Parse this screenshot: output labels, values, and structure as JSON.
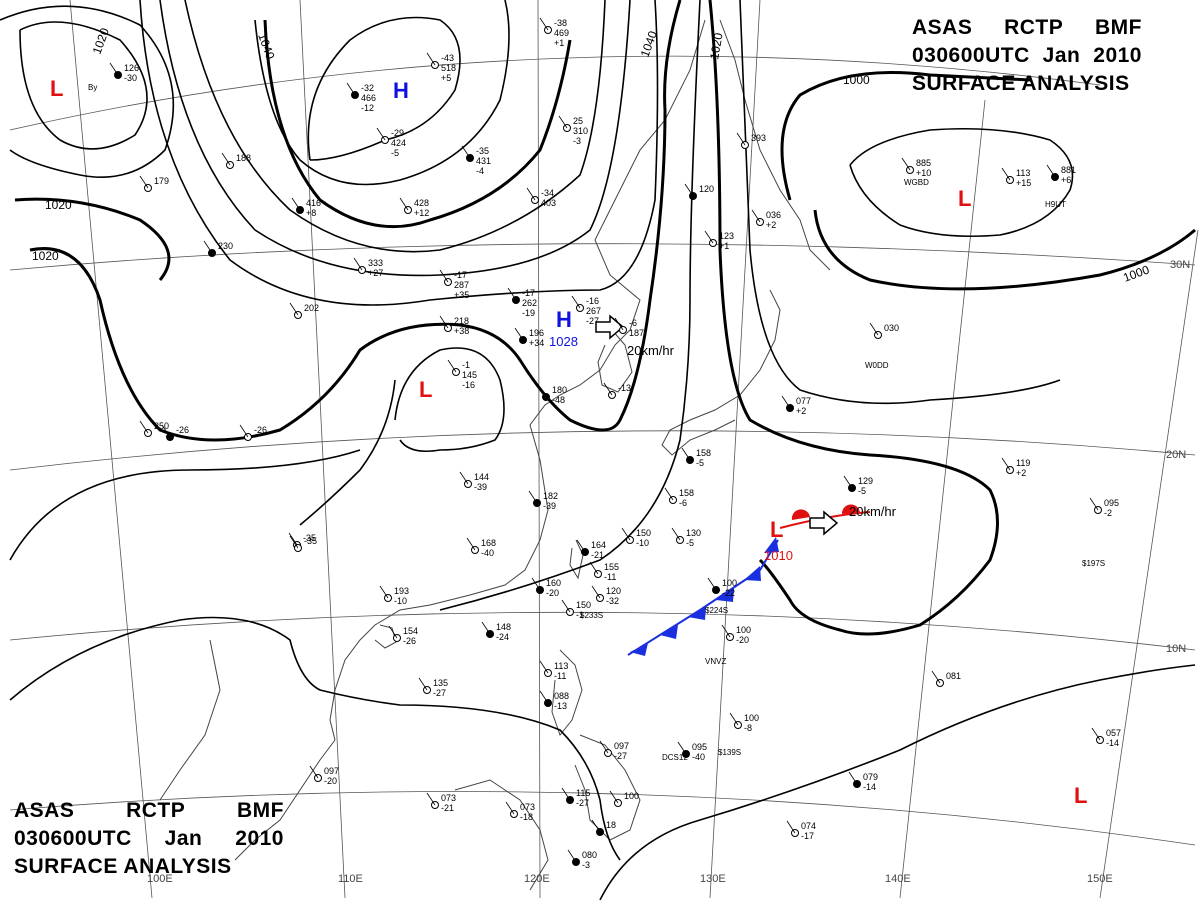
{
  "header": {
    "agency": "ASAS",
    "station": "RCTP",
    "office": "BMF",
    "time": "030600UTC",
    "month": "Jan",
    "year": "2010",
    "product": "SURFACE ANALYSIS"
  },
  "colors": {
    "low": "#e01010",
    "high": "#1010e0",
    "cold_front": "#1a2fe0",
    "warm_front": "#e01010"
  },
  "isobar_labels": [
    "1020",
    "1040",
    "1040",
    "1020",
    "1000",
    "1000",
    "1020",
    "1020"
  ],
  "pressure_centers": [
    {
      "type": "L",
      "value": ""
    },
    {
      "type": "H",
      "value": ""
    },
    {
      "type": "H",
      "value": "1028"
    },
    {
      "type": "L",
      "value": ""
    },
    {
      "type": "L",
      "value": ""
    },
    {
      "type": "L",
      "value": "1010"
    },
    {
      "type": "L",
      "value": ""
    }
  ],
  "motion_labels": [
    "20km/hr",
    "20km/hr"
  ],
  "lon_labels": [
    "100E",
    "110E",
    "120E",
    "130E",
    "140E",
    "150E"
  ],
  "lat_labels": [
    "30N",
    "20N",
    "10N"
  ],
  "stations": [
    [
      "126",
      "-30"
    ],
    [
      "-38",
      "469",
      "+1"
    ],
    [
      "-43",
      "518",
      "+5"
    ],
    [
      "-32",
      "466",
      "-12"
    ],
    [
      "-29",
      "424",
      "-5"
    ],
    [
      "25",
      "310",
      "-3"
    ],
    [
      "-35",
      "431",
      "-4"
    ],
    [
      "-34",
      "403"
    ],
    [
      "428",
      "+12"
    ],
    [
      "416",
      "+8"
    ],
    [
      "333",
      "+27"
    ],
    [
      "-17",
      "287",
      "+35"
    ],
    [
      "-17",
      "262",
      "-19"
    ],
    [
      "-16",
      "267",
      "-27"
    ],
    [
      "-6",
      "187"
    ],
    [
      "196",
      "+34"
    ],
    [
      "218",
      "+38"
    ],
    [
      "-1",
      "145",
      "-16"
    ],
    [
      "180",
      "-48"
    ],
    [
      "179"
    ],
    [
      "188"
    ],
    [
      "-26"
    ],
    [
      "-26"
    ],
    [
      "144",
      "-39"
    ],
    [
      "182",
      "-39"
    ],
    [
      "168",
      "-40"
    ],
    [
      "-35"
    ],
    [
      "164",
      "-21"
    ],
    [
      "155",
      "-11"
    ],
    [
      "120",
      "-32"
    ],
    [
      "160",
      "-20"
    ],
    [
      "150",
      "-1"
    ],
    [
      "154",
      "-26"
    ],
    [
      "148",
      "-24"
    ],
    [
      "135",
      "-27"
    ],
    [
      "158",
      "-6"
    ],
    [
      "158",
      "-5"
    ],
    [
      "150",
      "-10"
    ],
    [
      "130",
      "-5"
    ],
    [
      "100",
      "-22"
    ],
    [
      "100",
      "-20"
    ],
    [
      "113",
      "-11"
    ],
    [
      "088",
      "-13"
    ],
    [
      "097",
      "-27"
    ],
    [
      "100"
    ],
    [
      "095",
      "-40"
    ],
    [
      "100",
      "-8"
    ],
    [
      "113",
      "+15"
    ],
    [
      "115",
      "-27"
    ],
    [
      "073",
      "-18"
    ],
    [
      "073",
      "-21"
    ],
    [
      "080",
      "-3"
    ],
    [
      "081"
    ],
    [
      "057",
      "-14"
    ],
    [
      "079",
      "-14"
    ],
    [
      "074",
      "-17"
    ],
    [
      "097",
      "-20"
    ],
    [
      "129",
      "-5"
    ],
    [
      "119",
      "+2"
    ],
    [
      "095",
      "-2"
    ],
    [
      "077",
      "+2"
    ],
    [
      "030"
    ],
    [
      "885",
      "+10"
    ],
    [
      "881",
      "+6"
    ],
    [
      "036",
      "+2"
    ],
    [
      "123",
      "+1"
    ],
    [
      "120"
    ],
    [
      "393"
    ],
    [
      "202"
    ],
    [
      "230"
    ],
    [
      "250"
    ],
    [
      "193",
      "-10"
    ],
    [
      "18"
    ],
    [
      "-35"
    ],
    [
      "-13"
    ]
  ],
  "station_ids": [
    "VNVZ",
    "DCS12",
    "$197S",
    "$233S",
    "$224S",
    "$139S",
    "WGBD",
    "H9UT",
    "W0DD",
    "By"
  ]
}
